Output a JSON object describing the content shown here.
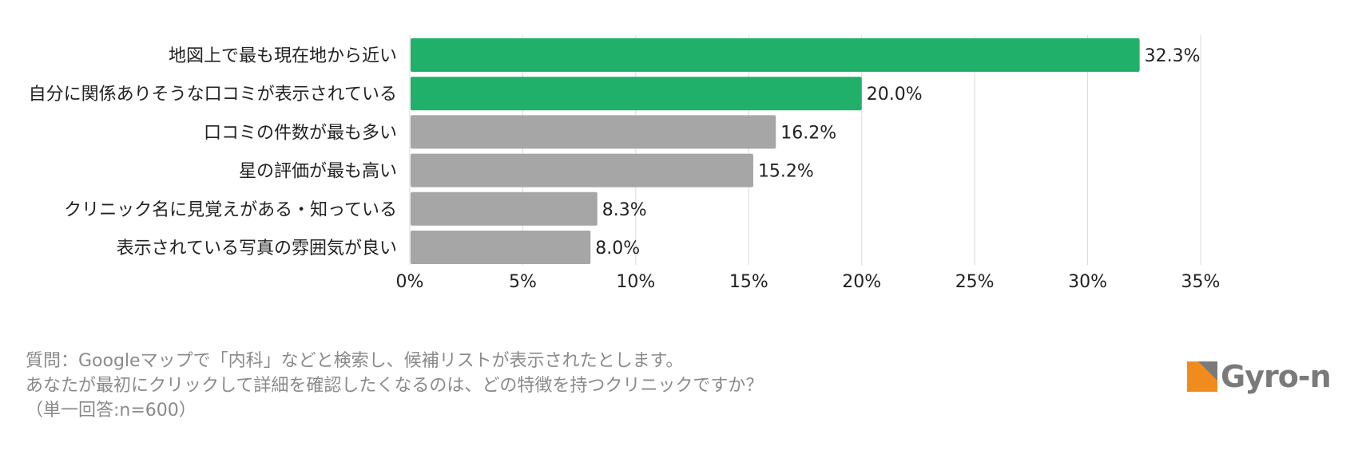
{
  "chart_data": {
    "type": "bar",
    "orientation": "horizontal",
    "categories": [
      "地図上で最も現在地から近い",
      "自分に関係ありそうな口コミが表示されている",
      "口コミの件数が最も多い",
      "星の評価が最も高い",
      "クリニック名に見覚えがある・知っている",
      "表示されている写真の雰囲気が良い"
    ],
    "values": [
      32.3,
      20.0,
      16.2,
      15.2,
      8.3,
      8.0
    ],
    "value_labels": [
      "32.3%",
      "20.0%",
      "16.2%",
      "15.2%",
      "8.3%",
      "8.0%"
    ],
    "highlight_count": 2,
    "xlim": [
      0,
      35
    ],
    "x_ticks": [
      0,
      5,
      10,
      15,
      20,
      25,
      30,
      35
    ],
    "x_tick_labels": [
      "0%",
      "5%",
      "10%",
      "15%",
      "20%",
      "25%",
      "30%",
      "35%"
    ],
    "grid": true,
    "colors": {
      "highlight": "#21b06a",
      "default": "#a6a6a6",
      "grid": "#d9d9d9"
    }
  },
  "question": {
    "line1": "質問：Googleマップで「内科」などと検索し、候補リストが表示されたとします。",
    "line2": "あなたが最初にクリックして詳細を確認したくなるのは、どの特徴を持つクリニックですか？",
    "line3": "（単一回答:n=600）"
  },
  "logo": {
    "text": "Gyro-n",
    "colors": {
      "orange": "#f08c1e",
      "gray": "#7a7a7a"
    }
  }
}
